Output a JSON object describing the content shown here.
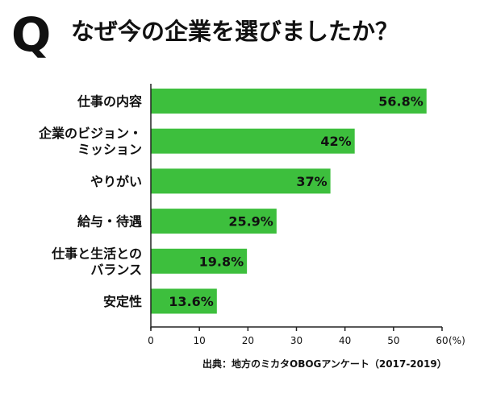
{
  "header": {
    "q_letter": "Q",
    "question": "なぜ今の企業を選びましたか？"
  },
  "source": "出典：地方のミカタOBOGアンケート（2017-2019）",
  "colors": {
    "bar": "#3dbf3d",
    "axis": "#222222"
  },
  "chart_data": {
    "type": "bar",
    "orientation": "horizontal",
    "categories": [
      [
        "仕事の内容"
      ],
      [
        "企業のビジョン・",
        "ミッション"
      ],
      [
        "やりがい"
      ],
      [
        "給与・待遇"
      ],
      [
        "仕事と生活との",
        "バランス"
      ],
      [
        "安定性"
      ]
    ],
    "values": [
      56.8,
      42,
      37,
      25.9,
      19.8,
      13.6
    ],
    "value_labels": [
      "56.8%",
      "42%",
      "37%",
      "25.9%",
      "19.8%",
      "13.6%"
    ],
    "xlim": [
      0,
      60
    ],
    "xticks": [
      0,
      10,
      20,
      30,
      40,
      50,
      60
    ],
    "xunit": "(%)",
    "grid": false
  }
}
